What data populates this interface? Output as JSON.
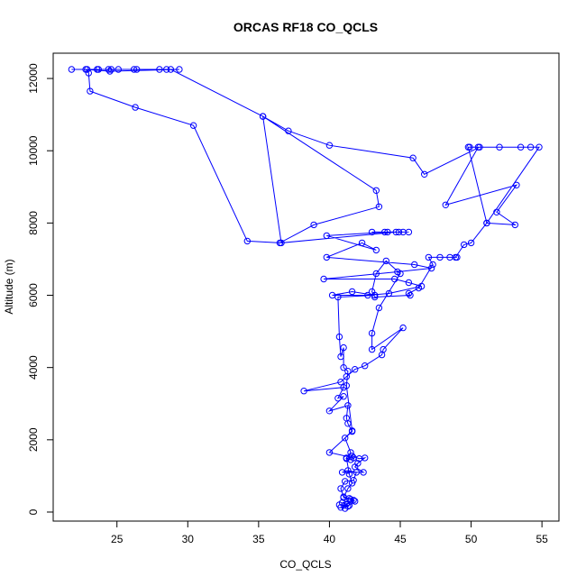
{
  "chart_data": {
    "type": "line",
    "title": "ORCAS RF18 CO_QCLS",
    "xlabel": "CO_QCLS",
    "ylabel": "Altitude (m)",
    "xlim": [
      20.5,
      56.2
    ],
    "ylim": [
      -250,
      12700
    ],
    "xticks": [
      25,
      30,
      35,
      40,
      45,
      50,
      55
    ],
    "yticks": [
      0,
      2000,
      4000,
      6000,
      8000,
      10000,
      12000
    ],
    "xtick_labels": [
      "25",
      "30",
      "35",
      "40",
      "45",
      "50",
      "55"
    ],
    "ytick_labels": [
      "0",
      "2000",
      "4000",
      "6000",
      "8000",
      "10000",
      "12000"
    ],
    "grid": false,
    "series": [
      {
        "color": "#0000ff",
        "marker": "open-circle",
        "points": [
          [
            41.1,
            100
          ],
          [
            40.8,
            130
          ],
          [
            41.3,
            160
          ],
          [
            40.7,
            200
          ],
          [
            41.4,
            180
          ],
          [
            41.2,
            220
          ],
          [
            40.9,
            260
          ],
          [
            41.5,
            300
          ],
          [
            41.7,
            330
          ],
          [
            41.4,
            380
          ],
          [
            41.0,
            420
          ],
          [
            40.8,
            650
          ],
          [
            41.1,
            850
          ],
          [
            41.7,
            880
          ],
          [
            41.9,
            1100
          ],
          [
            41.3,
            1150
          ],
          [
            40.9,
            1100
          ],
          [
            42.4,
            1100
          ],
          [
            41.8,
            1250
          ],
          [
            42.0,
            1350
          ],
          [
            42.5,
            1500
          ],
          [
            42.1,
            1480
          ],
          [
            41.6,
            1550
          ],
          [
            41.2,
            1480
          ],
          [
            41.5,
            1450
          ],
          [
            41.7,
            1500
          ],
          [
            40.0,
            1650
          ],
          [
            41.6,
            2230
          ],
          [
            41.3,
            2450
          ],
          [
            41.2,
            2600
          ],
          [
            41.3,
            2950
          ],
          [
            40.0,
            2800
          ],
          [
            41.0,
            3200
          ],
          [
            40.6,
            3150
          ],
          [
            41.0,
            3450
          ],
          [
            38.2,
            3350
          ],
          [
            40.8,
            3600
          ],
          [
            41.2,
            3750
          ],
          [
            41.8,
            3950
          ],
          [
            42.5,
            4050
          ],
          [
            43.7,
            4350
          ],
          [
            43.8,
            4500
          ],
          [
            45.2,
            5100
          ],
          [
            43.0,
            4500
          ],
          [
            43.0,
            4950
          ],
          [
            43.5,
            5650
          ],
          [
            45.0,
            6600
          ],
          [
            44.0,
            6950
          ],
          [
            43.3,
            6600
          ],
          [
            43.0,
            6100
          ],
          [
            43.2,
            5950
          ],
          [
            45.7,
            6000
          ],
          [
            45.6,
            6050
          ],
          [
            46.3,
            6200
          ],
          [
            47.3,
            6850
          ],
          [
            47.0,
            7050
          ],
          [
            47.8,
            7050
          ],
          [
            48.5,
            7050
          ],
          [
            49.0,
            7050
          ],
          [
            48.9,
            7050
          ],
          [
            49.5,
            7400
          ],
          [
            50.0,
            7450
          ],
          [
            51.1,
            8000
          ],
          [
            53.1,
            7950
          ],
          [
            51.8,
            8300
          ],
          [
            53.2,
            9050
          ],
          [
            48.2,
            8500
          ],
          [
            50.5,
            10100
          ],
          [
            52.0,
            10100
          ],
          [
            53.5,
            10100
          ],
          [
            54.2,
            10100
          ],
          [
            54.8,
            10100
          ],
          [
            51.1,
            8000
          ],
          [
            49.8,
            10100
          ],
          [
            49.9,
            10100
          ],
          [
            50.6,
            10100
          ],
          [
            46.7,
            9350
          ],
          [
            45.9,
            9800
          ],
          [
            40.0,
            10150
          ],
          [
            37.1,
            10550
          ],
          [
            35.3,
            10950
          ],
          [
            43.3,
            8900
          ],
          [
            43.5,
            8450
          ],
          [
            38.9,
            7950
          ],
          [
            36.5,
            7450
          ],
          [
            34.2,
            7500
          ],
          [
            30.4,
            10700
          ],
          [
            26.3,
            11200
          ],
          [
            23.1,
            11650
          ],
          [
            23.0,
            12150
          ],
          [
            22.8,
            12250
          ],
          [
            24.5,
            12200
          ],
          [
            29.4,
            12250
          ],
          [
            26.4,
            12250
          ],
          [
            24.6,
            12250
          ],
          [
            23.7,
            12250
          ],
          [
            22.9,
            12250
          ],
          [
            21.8,
            12250
          ],
          [
            23.6,
            12250
          ],
          [
            24.4,
            12250
          ],
          [
            25.1,
            12250
          ],
          [
            26.2,
            12250
          ],
          [
            28.0,
            12250
          ],
          [
            28.5,
            12250
          ],
          [
            28.8,
            12250
          ],
          [
            35.3,
            10950
          ],
          [
            36.6,
            7450
          ],
          [
            44.7,
            7750
          ],
          [
            45.2,
            7750
          ],
          [
            45.6,
            7750
          ],
          [
            43.9,
            7750
          ],
          [
            43.0,
            7750
          ],
          [
            44.9,
            7750
          ],
          [
            44.1,
            7750
          ],
          [
            39.8,
            7650
          ],
          [
            43.3,
            7250
          ],
          [
            42.3,
            7450
          ],
          [
            39.8,
            7050
          ],
          [
            46.0,
            6850
          ],
          [
            47.2,
            6750
          ],
          [
            44.8,
            6650
          ],
          [
            39.6,
            6450
          ],
          [
            44.6,
            6450
          ],
          [
            45.6,
            6350
          ],
          [
            46.5,
            6250
          ],
          [
            44.2,
            6050
          ],
          [
            42.7,
            6000
          ],
          [
            40.2,
            6000
          ],
          [
            41.6,
            6100
          ],
          [
            43.2,
            6000
          ],
          [
            40.6,
            5950
          ],
          [
            40.7,
            4850
          ],
          [
            40.8,
            4300
          ],
          [
            41.0,
            4550
          ],
          [
            41.0,
            4000
          ],
          [
            41.3,
            3900
          ],
          [
            41.2,
            3500
          ],
          [
            41.6,
            2250
          ],
          [
            41.1,
            2050
          ],
          [
            41.5,
            1650
          ],
          [
            41.2,
            1500
          ],
          [
            41.4,
            1050
          ],
          [
            41.6,
            800
          ],
          [
            41.3,
            650
          ],
          [
            41.0,
            400
          ],
          [
            41.5,
            350
          ],
          [
            41.8,
            300
          ]
        ]
      }
    ]
  }
}
